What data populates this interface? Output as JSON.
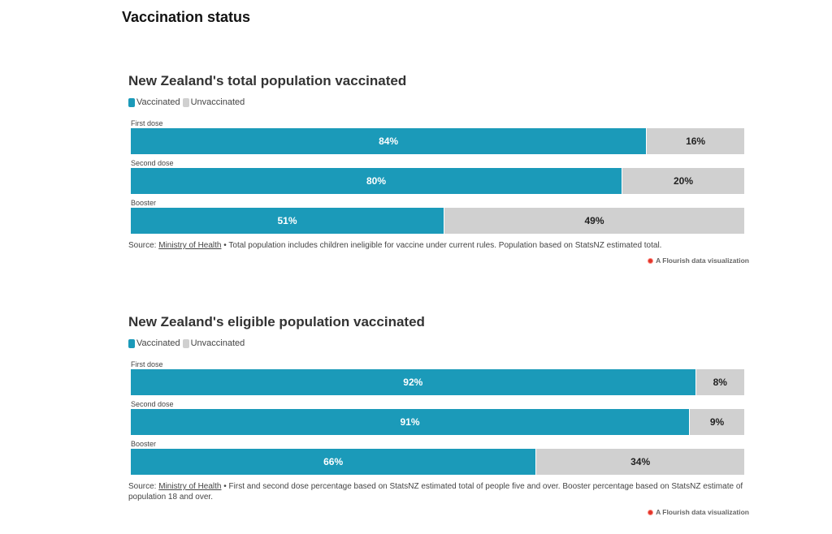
{
  "page": {
    "title": "Vaccination status"
  },
  "colors": {
    "vaccinated": "#1b9ab9",
    "unvaccinated": "#d0d0d0"
  },
  "chart_data": [
    {
      "type": "bar",
      "stacked": true,
      "orientation": "horizontal",
      "title": "New Zealand's total population vaccinated",
      "categories": [
        "First dose",
        "Second dose",
        "Booster"
      ],
      "series": [
        {
          "name": "Vaccinated",
          "values": [
            84,
            80,
            51
          ],
          "labels": [
            "84%",
            "80%",
            "51%"
          ]
        },
        {
          "name": "Unvaccinated",
          "values": [
            16,
            20,
            49
          ],
          "labels": [
            "16%",
            "20%",
            "49%"
          ]
        }
      ],
      "xlim": [
        0,
        100
      ],
      "legend": "top-left",
      "source_label": "Source: ",
      "source_link": "Ministry of Health",
      "source_note": " • Total population includes children ineligible for vaccine under current rules. Population based on StatsNZ estimated total.",
      "credit": "A Flourish data visualization"
    },
    {
      "type": "bar",
      "stacked": true,
      "orientation": "horizontal",
      "title": "New Zealand's eligible population vaccinated",
      "categories": [
        "First dose",
        "Second dose",
        "Booster"
      ],
      "series": [
        {
          "name": "Vaccinated",
          "values": [
            92,
            91,
            66
          ],
          "labels": [
            "92%",
            "91%",
            "66%"
          ]
        },
        {
          "name": "Unvaccinated",
          "values": [
            8,
            9,
            34
          ],
          "labels": [
            "8%",
            "9%",
            "34%"
          ]
        }
      ],
      "xlim": [
        0,
        100
      ],
      "legend": "top-left",
      "source_label": "Source: ",
      "source_link": "Ministry of Health",
      "source_note": " • First and second dose percentage based on StatsNZ estimated total of people five and over. Booster percentage based on StatsNZ estimate of population 18 and over.",
      "credit": "A Flourish data visualization"
    }
  ]
}
